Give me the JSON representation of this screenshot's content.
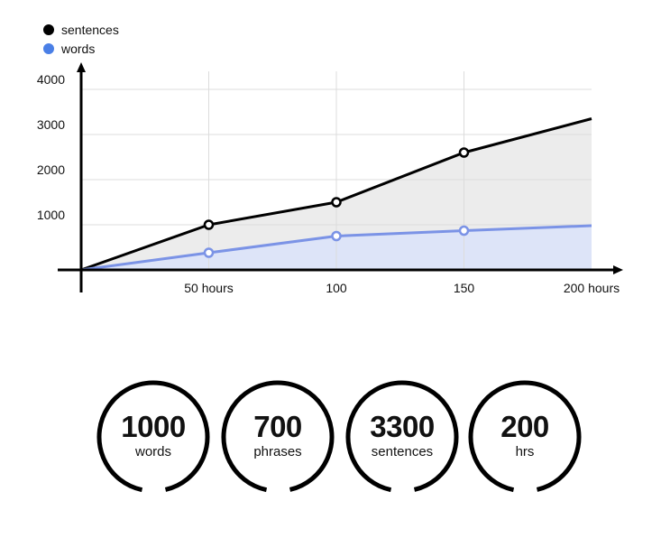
{
  "chart_data": {
    "type": "area",
    "x": [
      0,
      50,
      100,
      150,
      200
    ],
    "x_tick_labels": [
      "50 hours",
      "100",
      "150",
      "200 hours"
    ],
    "y_ticks": [
      1000,
      2000,
      3000,
      4000
    ],
    "ylim": [
      0,
      4000
    ],
    "xlim": [
      0,
      200
    ],
    "grid": true,
    "legend_position": "top-left",
    "series": [
      {
        "name": "sentences",
        "color": "#000000",
        "fill": "#ececec",
        "values": [
          0,
          1000,
          1500,
          2600,
          3350
        ]
      },
      {
        "name": "words",
        "color": "#7b93e6",
        "fill": "#dde4f8",
        "values": [
          0,
          380,
          750,
          870,
          980
        ]
      }
    ]
  },
  "legend": [
    {
      "label": "sentences",
      "color": "#000000"
    },
    {
      "label": "words",
      "color": "#4a7fe6"
    }
  ],
  "stats": [
    {
      "value": "1000",
      "label": "words"
    },
    {
      "value": "700",
      "label": "phrases"
    },
    {
      "value": "3300",
      "label": "sentences"
    },
    {
      "value": "200",
      "label": "hrs"
    }
  ]
}
